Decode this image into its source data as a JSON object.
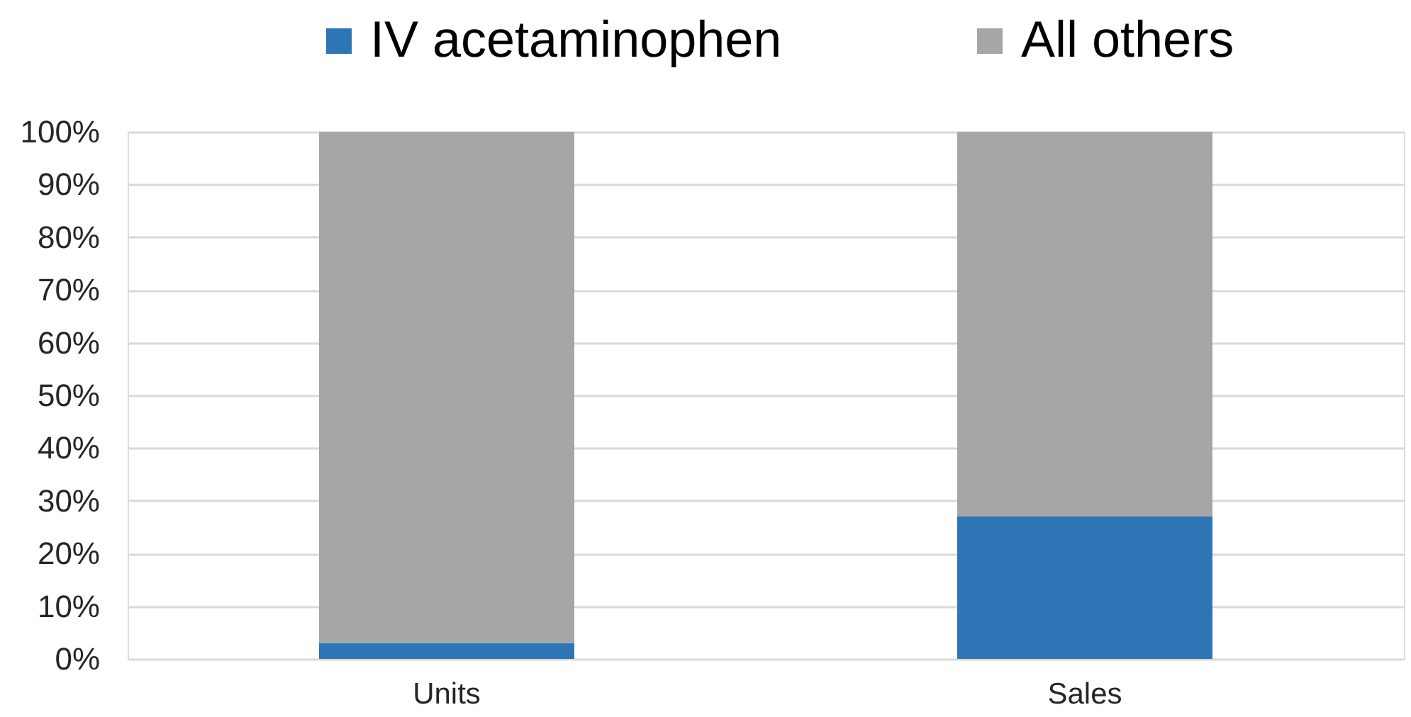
{
  "chart_data": {
    "type": "bar",
    "stacked": true,
    "categories": [
      "Units",
      "Sales"
    ],
    "series": [
      {
        "name": "IV acetaminophen",
        "color": "#2e75b6",
        "values": [
          3,
          27
        ]
      },
      {
        "name": "All others",
        "color": "#a6a6a6",
        "values": [
          97,
          73
        ]
      }
    ],
    "ylim": [
      0,
      100
    ],
    "yticks": [
      {
        "value": 0,
        "label": "0%"
      },
      {
        "value": 10,
        "label": "10%"
      },
      {
        "value": 20,
        "label": "20%"
      },
      {
        "value": 30,
        "label": "30%"
      },
      {
        "value": 40,
        "label": "40%"
      },
      {
        "value": 50,
        "label": "50%"
      },
      {
        "value": 60,
        "label": "60%"
      },
      {
        "value": 70,
        "label": "70%"
      },
      {
        "value": 80,
        "label": "80%"
      },
      {
        "value": 90,
        "label": "90%"
      },
      {
        "value": 100,
        "label": "100%"
      }
    ],
    "grid": "y",
    "legend": "top"
  }
}
